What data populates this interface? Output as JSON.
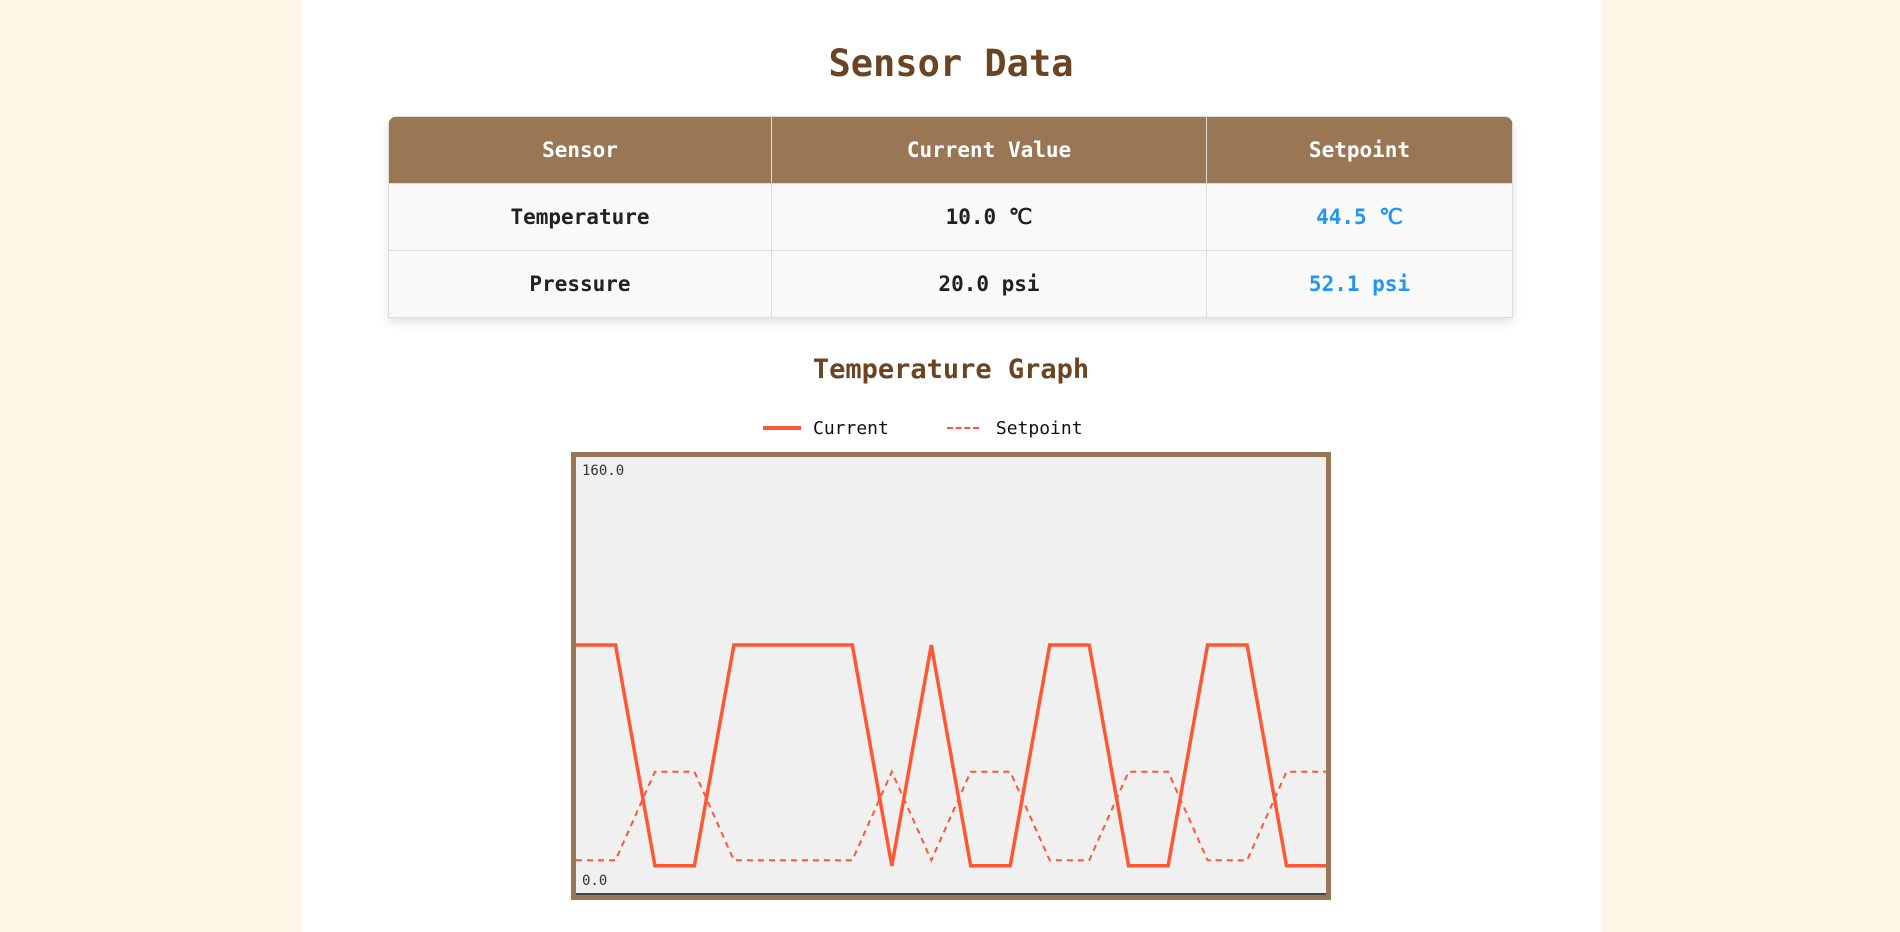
{
  "page": {
    "title": "Sensor Data",
    "background_color": "#fdf5e6"
  },
  "table": {
    "headers": [
      "Sensor",
      "Current Value",
      "Setpoint"
    ],
    "rows": [
      {
        "sensor": "Temperature",
        "current": "10.0 ℃",
        "setpoint": "44.5 ℃"
      },
      {
        "sensor": "Pressure",
        "current": "20.0 psi",
        "setpoint": "52.1 psi"
      }
    ],
    "header_color": "#997654",
    "setpoint_color": "#2196f3"
  },
  "graph": {
    "title": "Temperature Graph",
    "legend": [
      {
        "label": "Current",
        "style": "solid"
      },
      {
        "label": "Setpoint",
        "style": "dashed"
      }
    ],
    "y_max_label": "160.0",
    "y_min_label": "0.0",
    "line_color": "#ff5733",
    "frame_color": "#997654"
  },
  "chart_data": {
    "type": "line",
    "title": "Temperature Graph",
    "xlabel": "",
    "ylabel": "",
    "ylim": [
      0,
      160
    ],
    "grid": false,
    "legend_position": "top",
    "x": [
      0,
      1,
      2,
      3,
      4,
      5,
      6,
      7,
      8,
      9,
      10,
      11,
      12,
      13,
      14,
      15,
      16,
      17,
      18,
      19
    ],
    "series": [
      {
        "name": "Current",
        "style": "solid",
        "values": [
          91,
          91,
          10,
          10,
          91,
          91,
          91,
          91,
          10,
          91,
          10,
          10,
          91,
          91,
          10,
          10,
          91,
          91,
          10,
          10
        ]
      },
      {
        "name": "Setpoint",
        "style": "dashed",
        "values": [
          12,
          12,
          44.5,
          44.5,
          12,
          12,
          12,
          12,
          44.5,
          12,
          44.5,
          44.5,
          12,
          12,
          44.5,
          44.5,
          12,
          12,
          44.5,
          44.5
        ]
      }
    ]
  }
}
